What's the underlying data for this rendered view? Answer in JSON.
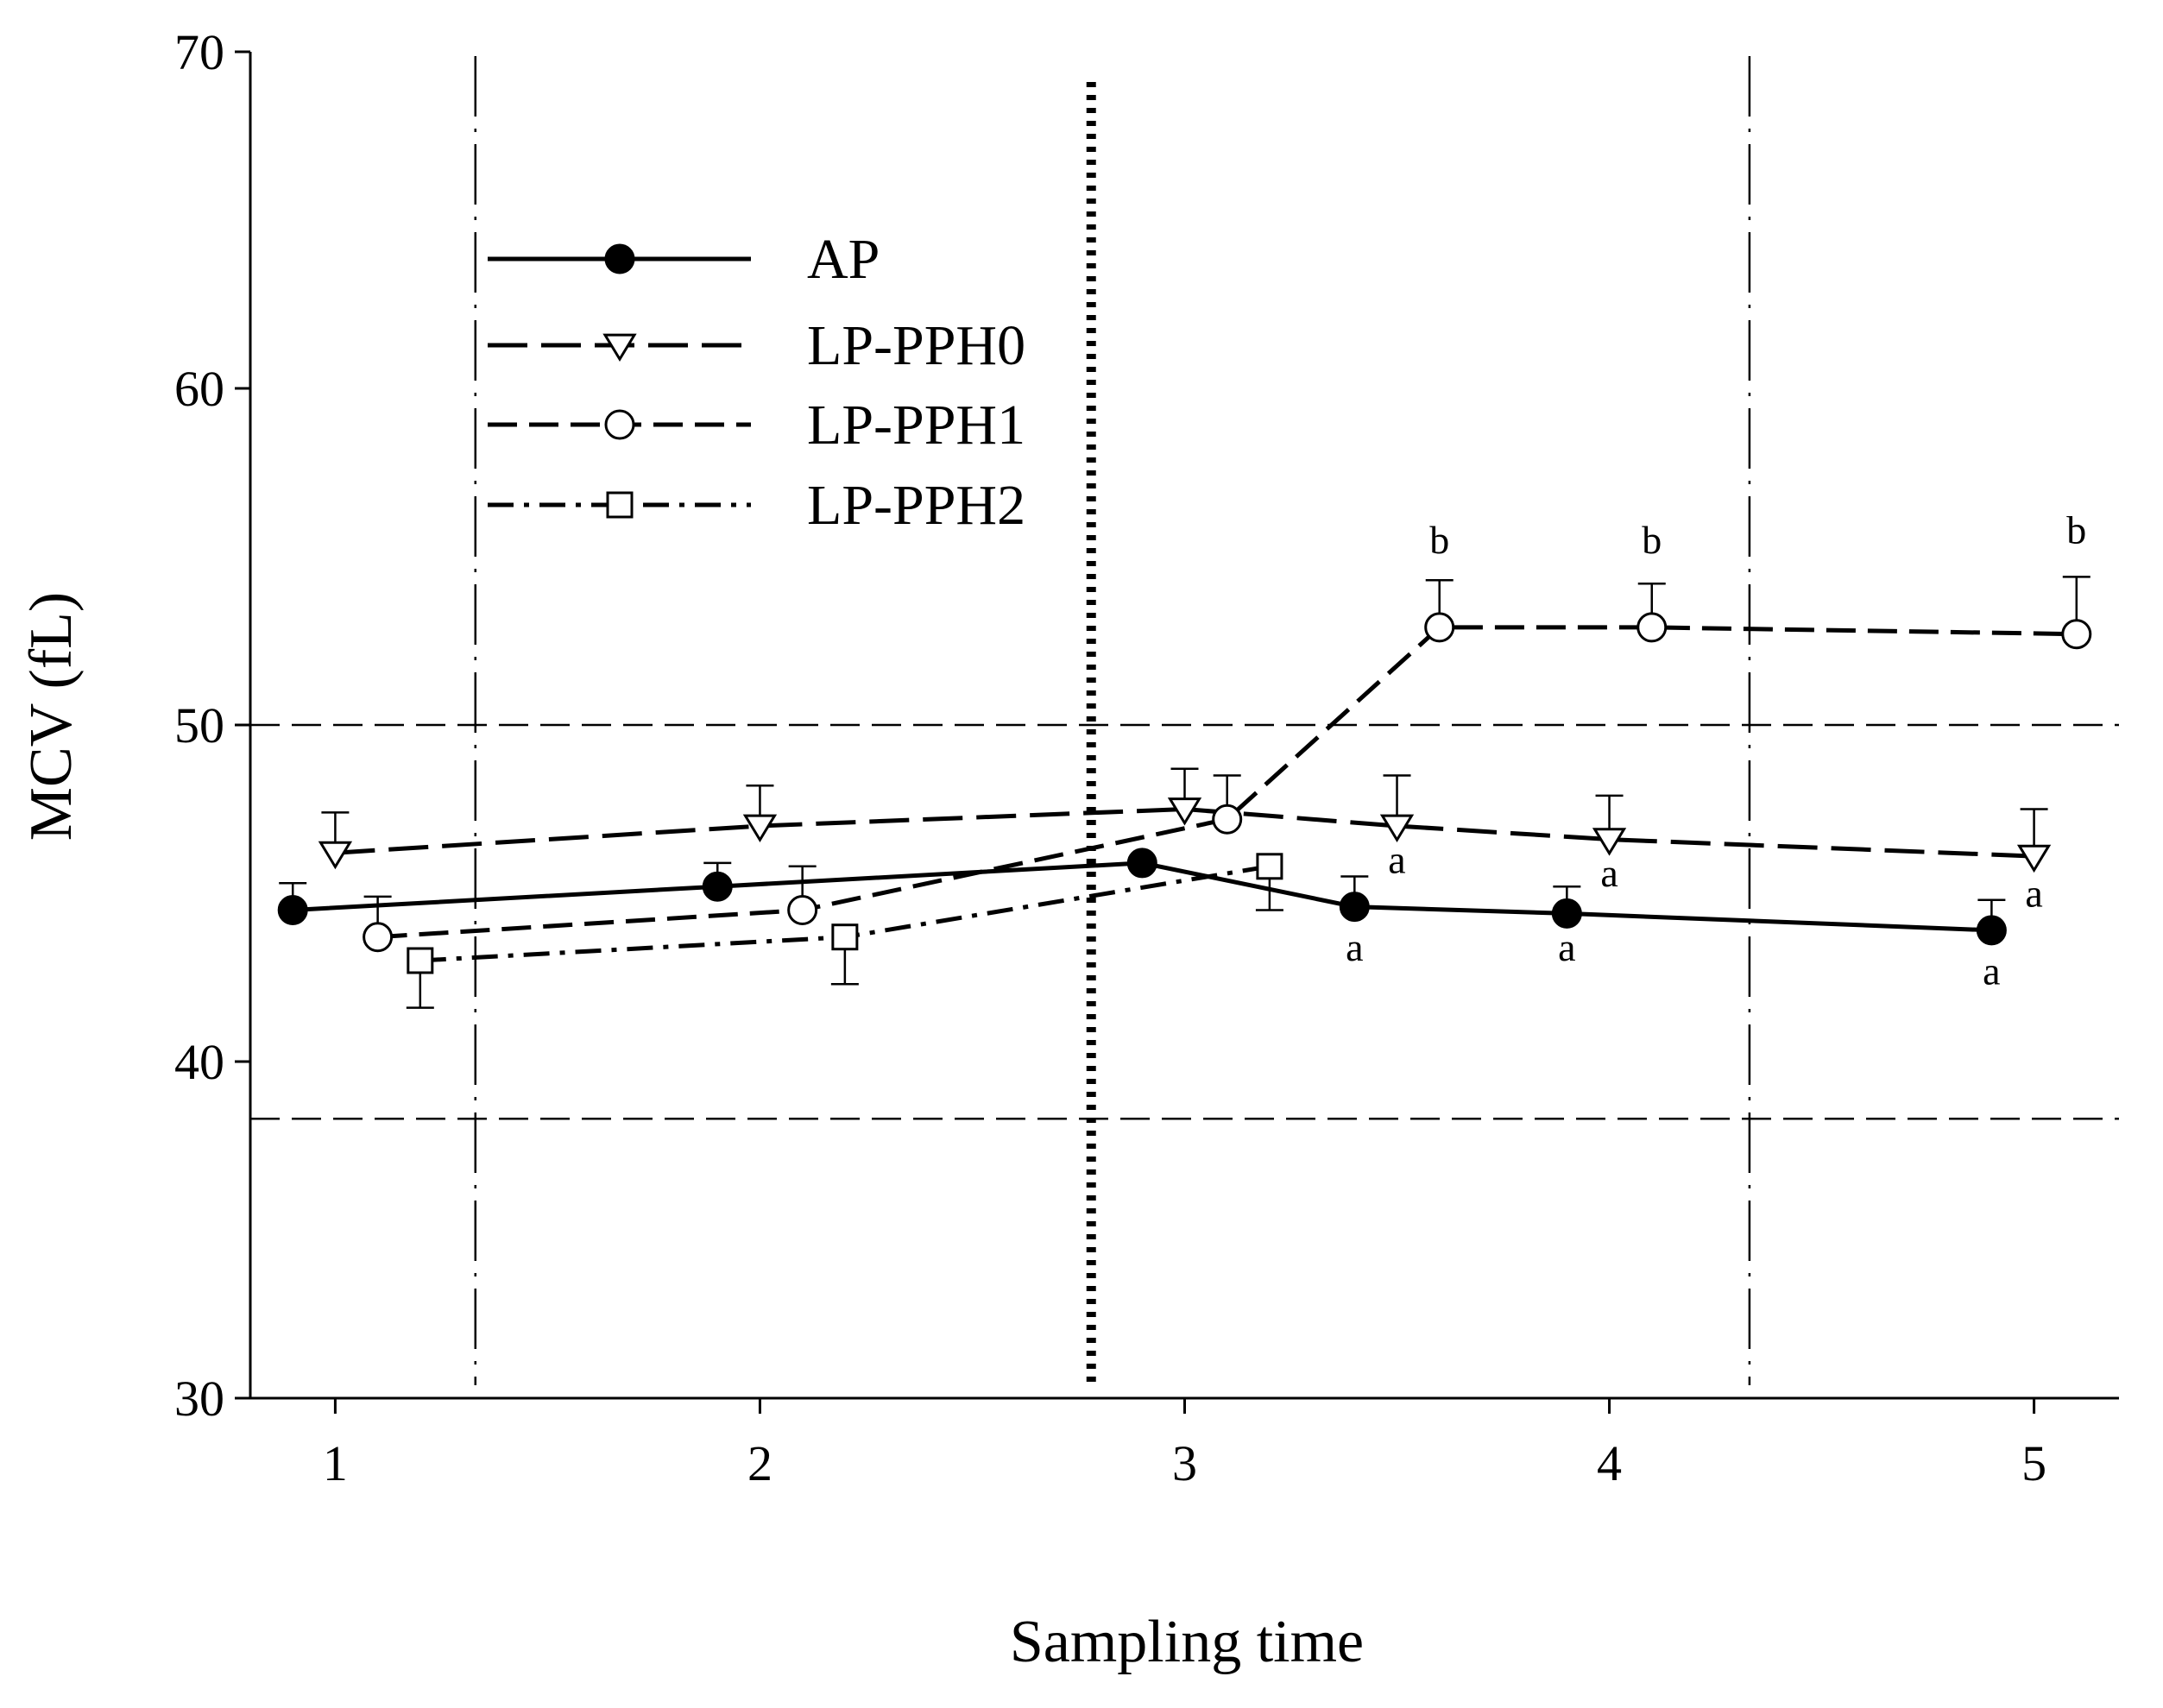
{
  "chart_data": {
    "type": "line",
    "title": "",
    "xlabel": "Sampling time",
    "ylabel": "MCV (fL)",
    "xlim": [
      0.8,
      5.2
    ],
    "ylim": [
      30,
      70
    ],
    "x_ticks": [
      "1",
      "2",
      "3",
      "4",
      "5"
    ],
    "y_ticks": [
      "30",
      "40",
      "50",
      "60",
      "70"
    ],
    "grid": false,
    "legend_position": "top-left",
    "reference_lines": {
      "horizontal_dashed": [
        50.0,
        38.3
      ],
      "vertical_dashed": [
        1.33,
        4.33
      ],
      "vertical_dotted": [
        2.78
      ]
    },
    "series": [
      {
        "name": "AP",
        "marker": "filled-circle",
        "line_style": "solid",
        "x": [
          0.9,
          1.9,
          2.9,
          3.4,
          3.9,
          4.9
        ],
        "y": [
          44.5,
          45.2,
          45.9,
          44.6,
          44.4,
          43.9
        ],
        "error_up": [
          0.8,
          0.7,
          0.0,
          0.9,
          0.8,
          0.9
        ],
        "annotations": [
          {
            "x": 3.4,
            "y": 43.0,
            "text": "a"
          },
          {
            "x": 3.9,
            "y": 43.0,
            "text": "a"
          },
          {
            "x": 4.9,
            "y": 42.3,
            "text": "a"
          }
        ]
      },
      {
        "name": "LP-PPH0",
        "marker": "open-triangle-down",
        "line_style": "long-dash",
        "x": [
          1.0,
          2.0,
          3.0,
          3.5,
          4.0,
          5.0
        ],
        "y": [
          46.2,
          47.0,
          47.5,
          47.0,
          46.6,
          46.1
        ],
        "error_up": [
          1.2,
          1.2,
          1.2,
          1.5,
          1.3,
          1.4
        ],
        "annotations": [
          {
            "x": 3.5,
            "y": 45.6,
            "text": "a"
          },
          {
            "x": 4.0,
            "y": 45.2,
            "text": "a"
          },
          {
            "x": 5.0,
            "y": 44.6,
            "text": "a"
          }
        ]
      },
      {
        "name": "LP-PPH1",
        "marker": "open-circle",
        "line_style": "dash",
        "x": [
          1.1,
          2.1,
          3.1,
          3.6,
          4.1,
          5.1
        ],
        "y": [
          43.7,
          44.5,
          47.2,
          52.9,
          52.9,
          52.7
        ],
        "error_up": [
          1.2,
          1.3,
          1.3,
          1.4,
          1.3,
          1.7
        ],
        "annotations": [
          {
            "x": 3.6,
            "y": 55.1,
            "text": "b"
          },
          {
            "x": 4.1,
            "y": 55.1,
            "text": "b"
          },
          {
            "x": 5.1,
            "y": 55.4,
            "text": "b"
          }
        ]
      },
      {
        "name": "LP-PPH2",
        "marker": "open-square",
        "line_style": "dash-dot",
        "x": [
          1.2,
          2.2,
          3.2
        ],
        "y": [
          43.0,
          43.7,
          45.8
        ],
        "error_down": [
          1.4,
          1.4,
          1.3
        ]
      }
    ]
  }
}
